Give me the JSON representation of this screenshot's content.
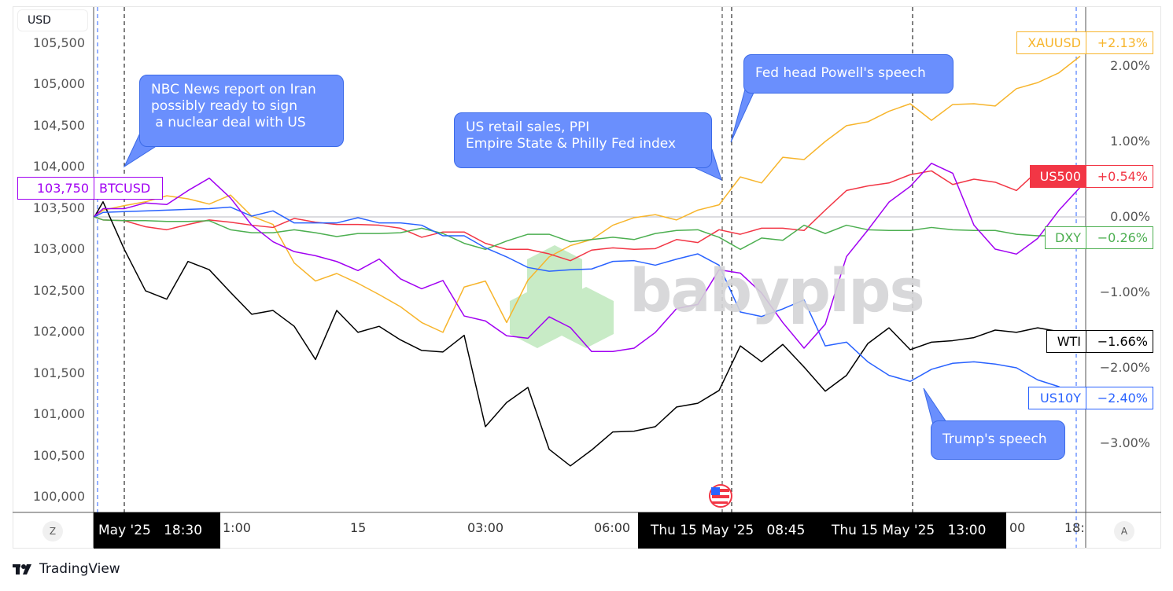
{
  "currency_label": "USD",
  "watermark": "babypips",
  "brand": "TradingView",
  "colors": {
    "XAUUSD": "#f7b52c",
    "US500": "#f23645",
    "DXY": "#4caf50",
    "US10Y": "#2962ff",
    "WTI": "#000000",
    "BTCUSD": "#a100f2",
    "callout": "#6a8ffd"
  },
  "callouts": [
    {
      "text": "NBC News report on Iran\npossibly ready to sign\n a nuclear deal with US"
    },
    {
      "text": "US retail sales, PPI\nEmpire State & Philly Fed index"
    },
    {
      "text": "Fed head Powell's speech"
    },
    {
      "text": "Trump's speech"
    }
  ],
  "time_axis": {
    "labels": [
      "1:00",
      "15",
      "03:00",
      "06:00",
      "00",
      "18:"
    ],
    "crosshair_labels": [
      "May '25   18:30",
      "Thu 15 May '25   08:45",
      "Thu 15 May '25   13:00"
    ],
    "left_button": "Z",
    "right_button": "A"
  },
  "chart_data": {
    "type": "line",
    "x": [
      "18:00",
      "18:30",
      "19:00",
      "19:30",
      "20:00",
      "20:30",
      "21:00",
      "21:30",
      "22:00",
      "22:30",
      "23:00",
      "23:30",
      "00:00",
      "00:30",
      "01:00",
      "01:30",
      "02:00",
      "02:30",
      "03:00",
      "03:30",
      "04:00",
      "04:30",
      "05:00",
      "05:30",
      "06:00",
      "06:30",
      "07:00",
      "07:30",
      "08:00",
      "08:30",
      "09:00",
      "09:30",
      "10:00",
      "10:30",
      "11:00",
      "11:30",
      "12:00",
      "12:30",
      "13:00",
      "13:30",
      "14:00",
      "14:30",
      "15:00",
      "15:30",
      "16:00",
      "16:30",
      "17:00"
    ],
    "left_axis": {
      "label": "USD",
      "ticks": [
        "105,500",
        "105,000",
        "104,500",
        "104,000",
        "103,500",
        "103,000",
        "102,500",
        "102,000",
        "101,500",
        "101,000",
        "100,500",
        "100,000"
      ],
      "range": [
        99900,
        105750
      ]
    },
    "right_axis": {
      "ticks": [
        "2.00%",
        "1.00%",
        "0.00%",
        "−1.00%",
        "−2.00%",
        "−3.00%"
      ],
      "range_pct": [
        -3.9,
        2.8
      ]
    },
    "series": [
      {
        "name": "XAUUSD",
        "last": "+2.13%",
        "axis": "right",
        "values": [
          0.09,
          0.15,
          0.2,
          0.28,
          0.24,
          0.17,
          0.29,
          0.01,
          -0.1,
          -0.61,
          -0.85,
          -0.75,
          -0.88,
          -1.03,
          -1.19,
          -1.4,
          -1.53,
          -0.93,
          -0.85,
          -1.4,
          -0.84,
          -0.53,
          -0.38,
          -0.3,
          -0.11,
          -0.01,
          0.03,
          -0.04,
          0.09,
          0.16,
          0.53,
          0.45,
          0.79,
          0.76,
          1.0,
          1.21,
          1.26,
          1.4,
          1.5,
          1.28,
          1.49,
          1.5,
          1.47,
          1.7,
          1.78,
          1.91,
          2.13
        ]
      },
      {
        "name": "US500",
        "last": "+0.54%",
        "axis": "right",
        "values": [
          -0.04,
          -0.05,
          -0.13,
          -0.17,
          -0.1,
          -0.04,
          -0.07,
          -0.11,
          -0.14,
          -0.02,
          -0.07,
          -0.1,
          -0.1,
          -0.11,
          -0.15,
          -0.27,
          -0.2,
          -0.2,
          -0.35,
          -0.43,
          -0.43,
          -0.49,
          -0.58,
          -0.44,
          -0.41,
          -0.43,
          -0.42,
          -0.3,
          -0.34,
          -0.17,
          -0.23,
          -0.15,
          -0.15,
          -0.18,
          0.09,
          0.35,
          0.41,
          0.45,
          0.56,
          0.61,
          0.43,
          0.5,
          0.46,
          0.35,
          0.61,
          0.53,
          0.54
        ]
      },
      {
        "name": "DXY",
        "last": "−0.26%",
        "axis": "right",
        "values": [
          -0.04,
          -0.05,
          -0.05,
          -0.06,
          -0.06,
          -0.05,
          -0.17,
          -0.21,
          -0.21,
          -0.17,
          -0.21,
          -0.26,
          -0.22,
          -0.22,
          -0.21,
          -0.15,
          -0.22,
          -0.35,
          -0.43,
          -0.32,
          -0.23,
          -0.23,
          -0.33,
          -0.3,
          -0.27,
          -0.3,
          -0.22,
          -0.18,
          -0.17,
          -0.27,
          -0.43,
          -0.28,
          -0.31,
          -0.11,
          -0.22,
          -0.11,
          -0.17,
          -0.18,
          -0.18,
          -0.14,
          -0.17,
          -0.18,
          -0.18,
          -0.23,
          -0.25,
          -0.25,
          -0.26
        ]
      },
      {
        "name": "WTI",
        "last": "−1.66%",
        "axis": "right",
        "values": [
          0.2,
          -0.43,
          -0.98,
          -1.09,
          -0.59,
          -0.7,
          -1.0,
          -1.29,
          -1.24,
          -1.45,
          -1.89,
          -1.24,
          -1.53,
          -1.45,
          -1.63,
          -1.77,
          -1.79,
          -1.57,
          -2.78,
          -2.46,
          -2.26,
          -3.08,
          -3.3,
          -3.09,
          -2.85,
          -2.84,
          -2.78,
          -2.52,
          -2.47,
          -2.3,
          -1.71,
          -1.92,
          -1.69,
          -1.99,
          -2.31,
          -2.1,
          -1.68,
          -1.47,
          -1.76,
          -1.66,
          -1.64,
          -1.6,
          -1.5,
          -1.53,
          -1.47,
          -1.52,
          -1.66
        ]
      },
      {
        "name": "US10Y",
        "last": "−2.40%",
        "axis": "right",
        "values": [
          0.06,
          0.07,
          0.08,
          0.09,
          0.1,
          0.11,
          0.13,
          0.01,
          0.08,
          -0.08,
          -0.08,
          -0.08,
          -0.01,
          -0.08,
          -0.08,
          -0.11,
          -0.25,
          -0.25,
          -0.41,
          -0.53,
          -0.67,
          -0.72,
          -0.7,
          -0.69,
          -0.59,
          -0.58,
          -0.64,
          -0.56,
          -0.49,
          -0.64,
          -1.26,
          -1.32,
          -1.22,
          -1.1,
          -1.71,
          -1.66,
          -1.92,
          -2.1,
          -2.18,
          -2.02,
          -1.94,
          -1.92,
          -1.95,
          -2.0,
          -2.16,
          -2.25,
          -2.4
        ]
      },
      {
        "name": "BTCUSD",
        "last": "103,750",
        "axis": "left",
        "values": [
          103490,
          103490,
          103560,
          103540,
          103710,
          103860,
          103620,
          103290,
          103090,
          102970,
          102920,
          102850,
          102740,
          102880,
          102640,
          102520,
          102620,
          102190,
          102130,
          101950,
          101920,
          102180,
          102050,
          101760,
          101760,
          101800,
          101990,
          102280,
          102330,
          102750,
          102710,
          102470,
          102110,
          101800,
          102090,
          102910,
          103230,
          103570,
          103760,
          104040,
          103920,
          103290,
          103000,
          102940,
          103130,
          103470,
          103750
        ]
      }
    ]
  }
}
